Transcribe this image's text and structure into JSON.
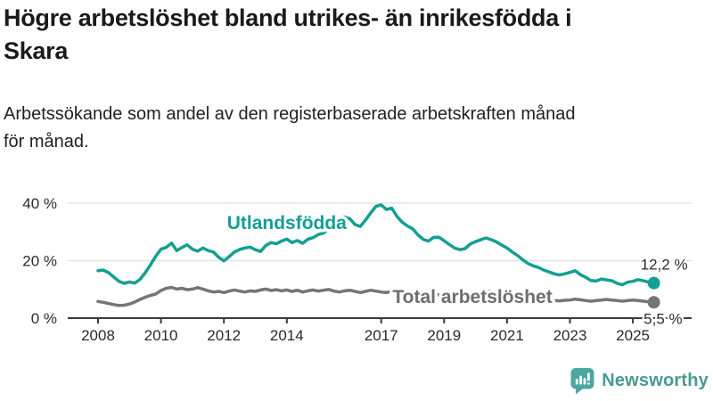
{
  "title": {
    "line1": "Högre arbetslöshet bland utrikes- än inrikesfödda i",
    "line2": "Skara"
  },
  "subtitle": {
    "line1": "Arbetssökande som andel av den registerbaserade arbetskraften månad",
    "line2": "för månad."
  },
  "branding": {
    "logo_text": "Newsworthy",
    "logo_icon": "bar-chart-speech-bubble-icon"
  },
  "colors": {
    "background": "#ffffff",
    "title_text": "#1a1a1a",
    "body_text": "#212121",
    "axis_line": "#3a3a3a",
    "axis_text": "#2b2b2b",
    "gridline": "#e3e3e3",
    "foreign_born_line": "#12a092",
    "total_line": "#757575",
    "total_label": "#6e6e6e",
    "logo_bubble": "#4ba7a1",
    "logo_wordmark": "#479a94"
  },
  "chart_data": {
    "type": "line",
    "title": "Högre arbetslöshet bland utrikes- än inrikesfödda i Skara",
    "subtitle": "Arbetssökande som andel av den registerbaserade arbetskraften månad för månad.",
    "xlabel": "",
    "ylabel": "",
    "grid": true,
    "legend_position": "inline-labels",
    "x_range": [
      2008,
      2025.67
    ],
    "ylim": [
      0,
      43
    ],
    "y_ticks": [
      0,
      20,
      40
    ],
    "y_tick_labels": [
      "0 %",
      "20 %",
      "40 %"
    ],
    "x_ticks": [
      2008,
      2010,
      2012,
      2014,
      2017,
      2019,
      2021,
      2023,
      2025
    ],
    "x_tick_labels": [
      "2008",
      "2010",
      "2012",
      "2014",
      "2017",
      "2019",
      "2021",
      "2023",
      "2025"
    ],
    "x_start": 2008.0,
    "x_step_years": 0.16667,
    "series": [
      {
        "name": "Utlandsfödda",
        "color": "#12a092",
        "end_value": 12.2,
        "end_label": "12,2 %",
        "values": [
          16.5,
          16.7,
          15.8,
          14.3,
          12.8,
          12.1,
          12.6,
          12.2,
          13.5,
          15.8,
          18.5,
          21.5,
          24.0,
          24.6,
          26.1,
          23.5,
          24.6,
          25.5,
          24.0,
          23.3,
          24.4,
          23.5,
          23.0,
          21.2,
          19.9,
          21.4,
          23.0,
          23.9,
          24.4,
          24.7,
          23.8,
          23.2,
          25.3,
          26.3,
          25.9,
          26.8,
          27.5,
          26.3,
          27.0,
          26.0,
          27.4,
          28.0,
          29.1,
          29.6,
          31.2,
          33.2,
          34.8,
          35.2,
          34.6,
          32.6,
          31.9,
          34.1,
          36.6,
          38.9,
          39.4,
          37.8,
          38.3,
          35.4,
          33.4,
          32.1,
          31.1,
          29.0,
          27.4,
          26.8,
          28.1,
          28.2,
          26.9,
          25.6,
          24.4,
          23.8,
          24.2,
          25.8,
          26.6,
          27.3,
          27.9,
          27.3,
          26.5,
          25.4,
          24.4,
          23.0,
          21.8,
          20.3,
          19.0,
          18.2,
          17.6,
          16.7,
          16.1,
          15.4,
          15.0,
          15.4,
          15.9,
          16.5,
          15.1,
          14.2,
          13.1,
          12.9,
          13.6,
          13.3,
          13.0,
          12.1,
          11.6,
          12.5,
          12.8,
          13.4,
          13.0,
          12.5,
          12.2
        ]
      },
      {
        "name": "Total arbetslöshet",
        "color": "#757575",
        "end_value": 5.5,
        "end_label": "5,5 %",
        "values": [
          5.8,
          5.5,
          5.1,
          4.7,
          4.4,
          4.5,
          4.9,
          5.6,
          6.5,
          7.3,
          7.9,
          8.4,
          9.6,
          10.4,
          10.7,
          10.1,
          10.4,
          9.9,
          10.1,
          10.6,
          10.1,
          9.5,
          9.1,
          9.3,
          8.9,
          9.4,
          9.8,
          9.4,
          9.1,
          9.5,
          9.3,
          9.8,
          10.1,
          9.6,
          9.9,
          9.5,
          9.8,
          9.3,
          9.7,
          9.1,
          9.5,
          9.8,
          9.4,
          9.7,
          10.0,
          9.4,
          9.1,
          9.5,
          9.7,
          9.3,
          8.9,
          9.3,
          9.7,
          9.4,
          9.1,
          8.9,
          9.3,
          8.9,
          8.5,
          8.7,
          8.5,
          8.1,
          7.9,
          8.1,
          8.3,
          8.1,
          7.9,
          7.7,
          7.9,
          8.1,
          8.3,
          8.5,
          8.7,
          9.1,
          9.5,
          9.3,
          9.1,
          8.9,
          8.7,
          8.5,
          8.1,
          7.7,
          7.3,
          7.1,
          6.9,
          6.6,
          6.4,
          6.1,
          6.0,
          6.2,
          6.3,
          6.6,
          6.4,
          6.1,
          5.9,
          6.1,
          6.3,
          6.5,
          6.3,
          6.1,
          5.9,
          6.1,
          6.3,
          6.1,
          5.9,
          5.7,
          5.5
        ]
      }
    ],
    "annotations": [
      {
        "text": "Utlandsfödda",
        "x": 2014.0,
        "y": 33.2,
        "color": "#12a092"
      },
      {
        "text": "Total arbetslöshet",
        "x": 2019.9,
        "y": 7.4,
        "color": "#6e6e6e"
      }
    ]
  }
}
